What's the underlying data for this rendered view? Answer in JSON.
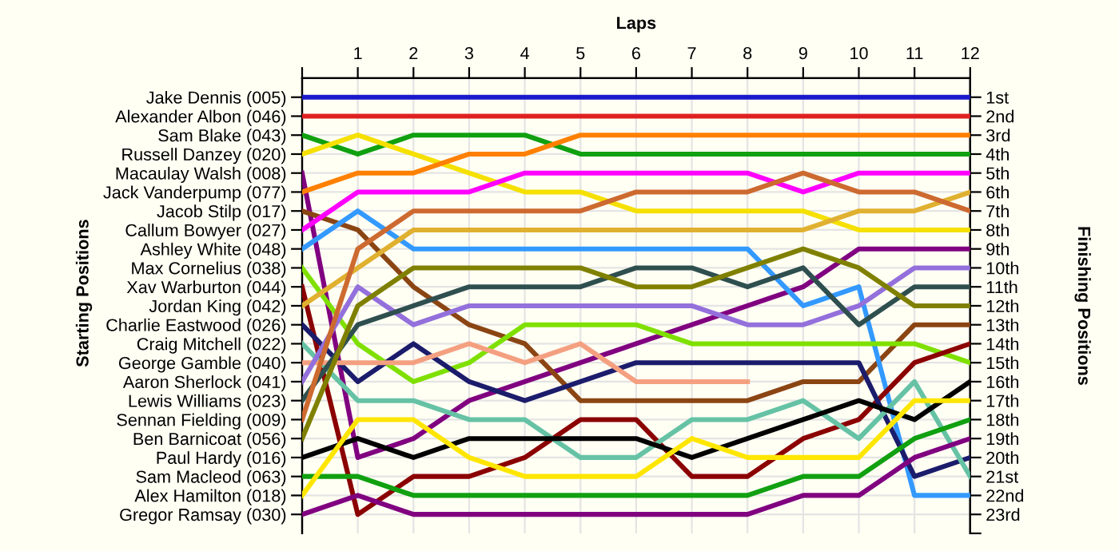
{
  "chart_data": {
    "type": "line",
    "xlabel": "Laps",
    "annotations": [
      "Starting Positions"
    ],
    "y2label": "Finishing Positions",
    "x": [
      0,
      1,
      2,
      3,
      4,
      5,
      6,
      7,
      8,
      9,
      10,
      11,
      12
    ],
    "xlim": [
      0,
      12
    ],
    "xticks": [
      {
        "value": 0,
        "label": null
      },
      1,
      2,
      3,
      4,
      5,
      6,
      7,
      8,
      9,
      10,
      11,
      12
    ],
    "y_categories": [
      "Jake Dennis (005)",
      "Alexander Albon (046)",
      "Sam Blake (043)",
      "Russell Danzey (020)",
      "Macaulay Walsh (008)",
      "Jack Vanderpump (077)",
      "Jacob Stilp (017)",
      "Callum Bowyer (027)",
      "Ashley White (048)",
      "Max Cornelius (038)",
      "Xav Warburton (044)",
      "Jordan King (042)",
      "Charlie Eastwood (026)",
      "Craig Mitchell (022)",
      "George Gamble (040)",
      "Aaron Sherlock (041)",
      "Lewis Williams (023)",
      "Sennan Fielding (009)",
      "Ben Barnicoat (056)",
      "Paul Hardy (016)",
      "Sam Macleod (063)",
      "Alex Hamilton (018)",
      "Gregor Ramsay (030)"
    ],
    "y2lim": [
      24,
      0
    ],
    "y2ticks": [
      {
        "value": 1,
        "label": "1st"
      },
      {
        "value": 2,
        "label": "2nd"
      },
      {
        "value": 3,
        "label": "3rd"
      },
      {
        "value": 4,
        "label": "4th"
      },
      {
        "value": 5,
        "label": "5th"
      },
      {
        "value": 6,
        "label": "6th"
      },
      {
        "value": 7,
        "label": "7th"
      },
      {
        "value": 8,
        "label": "8th"
      },
      {
        "value": 9,
        "label": "9th"
      },
      {
        "value": 10,
        "label": "10th"
      },
      {
        "value": 11,
        "label": "11th"
      },
      {
        "value": 12,
        "label": "12th"
      },
      {
        "value": 13,
        "label": "13th"
      },
      {
        "value": 14,
        "label": "14th"
      },
      {
        "value": 15,
        "label": "15th"
      },
      {
        "value": 16,
        "label": "16th"
      },
      {
        "value": 17,
        "label": "17th"
      },
      {
        "value": 18,
        "label": "18th"
      },
      {
        "value": 19,
        "label": "19th"
      },
      {
        "value": 20,
        "label": "20th"
      },
      {
        "value": 21,
        "label": "21st"
      },
      {
        "value": 22,
        "label": "22nd"
      },
      {
        "value": 23,
        "label": "23rd"
      },
      {
        "value": 24,
        "label": null
      }
    ],
    "grid": true,
    "marker": "none",
    "line_style": "solid",
    "series": [
      {
        "axis": "y2",
        "color": "#1a1acc",
        "values": [
          1,
          1,
          1,
          1,
          1,
          1,
          1,
          1,
          1,
          1,
          1,
          1,
          1
        ]
      },
      {
        "axis": "y2",
        "color": "#e02020",
        "values": [
          2,
          2,
          2,
          2,
          2,
          2,
          2,
          2,
          2,
          2,
          2,
          2,
          2
        ]
      },
      {
        "axis": "y2",
        "color": "#10a010",
        "values": [
          3,
          4,
          3,
          3,
          3,
          4,
          4,
          4,
          4,
          4,
          4,
          4,
          4
        ]
      },
      {
        "axis": "y2",
        "color": "#f5e000",
        "values": [
          4,
          3,
          4,
          5,
          6,
          6,
          7,
          7,
          7,
          7,
          8,
          8,
          8
        ]
      },
      {
        "axis": "y2",
        "color": "#800080",
        "values": [
          5,
          20,
          19,
          17,
          16,
          15,
          14,
          13,
          12,
          11,
          9,
          9,
          9
        ]
      },
      {
        "axis": "y2",
        "color": "#ff8000",
        "values": [
          6,
          5,
          5,
          4,
          4,
          3,
          3,
          3,
          3,
          3,
          3,
          3,
          3
        ]
      },
      {
        "axis": "y2",
        "color": "#8b4513",
        "values": [
          7,
          8,
          11,
          13,
          14,
          17,
          17,
          17,
          17,
          16,
          16,
          13,
          13
        ]
      },
      {
        "axis": "y2",
        "color": "#ff00ff",
        "values": [
          8,
          6,
          6,
          6,
          5,
          5,
          5,
          5,
          5,
          6,
          5,
          5,
          5
        ]
      },
      {
        "axis": "y2",
        "color": "#3399ff",
        "values": [
          9,
          7,
          9,
          9,
          9,
          9,
          9,
          9,
          9,
          12,
          11,
          22,
          22
        ]
      },
      {
        "axis": "y2",
        "color": "#7fe000",
        "values": [
          10,
          14,
          16,
          15,
          13,
          13,
          13,
          14,
          14,
          14,
          14,
          14,
          15
        ]
      },
      {
        "axis": "y2",
        "color": "#8b0000",
        "values": [
          11,
          23,
          21,
          21,
          20,
          18,
          18,
          21,
          21,
          19,
          18,
          15,
          14
        ]
      },
      {
        "axis": "y2",
        "color": "#e0b030",
        "values": [
          12,
          10,
          8,
          8,
          8,
          8,
          8,
          8,
          8,
          8,
          7,
          7,
          6
        ]
      },
      {
        "axis": "y2",
        "color": "#1c1c6c",
        "values": [
          13,
          16,
          14,
          16,
          17,
          16,
          15,
          15,
          15,
          15,
          15,
          21,
          20
        ]
      },
      {
        "axis": "y2",
        "color": "#66c2a5",
        "values": [
          14,
          17,
          17,
          18,
          18,
          20,
          20,
          18,
          18,
          17,
          19,
          16,
          21
        ]
      },
      {
        "axis": "y2",
        "color": "#f4a080",
        "values": [
          15,
          15,
          15,
          14,
          15,
          14,
          16,
          16,
          16,
          null,
          null,
          null,
          null
        ]
      },
      {
        "axis": "y2",
        "color": "#9370db",
        "values": [
          16,
          11,
          13,
          12,
          12,
          12,
          12,
          12,
          13,
          13,
          12,
          10,
          10
        ]
      },
      {
        "axis": "y2",
        "color": "#2f4f4f",
        "values": [
          17,
          13,
          12,
          11,
          11,
          11,
          10,
          10,
          11,
          10,
          13,
          11,
          11
        ]
      },
      {
        "axis": "y2",
        "color": "#cd6a30",
        "values": [
          18,
          9,
          7,
          7,
          7,
          7,
          6,
          6,
          6,
          5,
          6,
          6,
          7
        ]
      },
      {
        "axis": "y2",
        "color": "#808000",
        "values": [
          19,
          12,
          10,
          10,
          10,
          10,
          11,
          11,
          10,
          9,
          10,
          12,
          12
        ]
      },
      {
        "axis": "y2",
        "color": "#000000",
        "values": [
          20,
          19,
          20,
          19,
          19,
          19,
          19,
          20,
          19,
          18,
          17,
          18,
          16
        ]
      },
      {
        "axis": "y2",
        "color": "#10a010",
        "values": [
          21,
          21,
          22,
          22,
          22,
          22,
          22,
          22,
          22,
          21,
          21,
          19,
          18
        ]
      },
      {
        "axis": "y2",
        "color": "#ffe600",
        "values": [
          22,
          18,
          18,
          20,
          21,
          21,
          21,
          19,
          20,
          20,
          20,
          17,
          17
        ]
      },
      {
        "axis": "y2",
        "color": "#800080",
        "values": [
          23,
          22,
          23,
          23,
          23,
          23,
          23,
          23,
          23,
          22,
          22,
          20,
          19
        ]
      }
    ]
  }
}
